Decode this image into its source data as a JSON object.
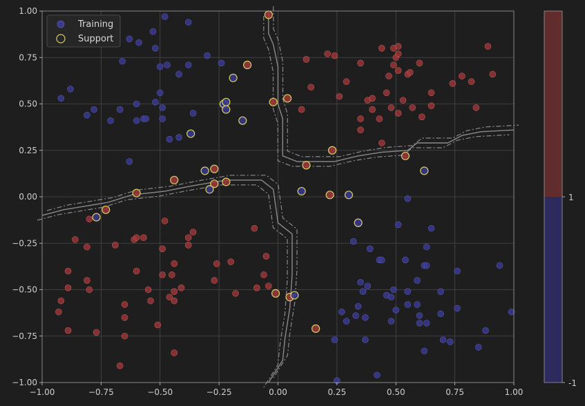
{
  "chart_data": {
    "type": "scatter",
    "title": "",
    "xlabel": "",
    "ylabel": "",
    "xlim": [
      -1.0,
      1.0
    ],
    "ylim": [
      -1.0,
      1.0
    ],
    "grid": true,
    "legend_position": "top-left",
    "x_ticks": [
      -1.0,
      -0.75,
      -0.5,
      -0.25,
      0.0,
      0.25,
      0.5,
      0.75,
      1.0
    ],
    "x_tick_labels": [
      "−1.00",
      "−0.75",
      "−0.50",
      "−0.25",
      "0.00",
      "0.25",
      "0.50",
      "0.75",
      "1.00"
    ],
    "y_ticks": [
      -1.0,
      -0.75,
      -0.5,
      -0.25,
      0.0,
      0.25,
      0.5,
      0.75,
      1.0
    ],
    "y_tick_labels": [
      "−1.00",
      "−0.75",
      "−0.50",
      "−0.25",
      "0.00",
      "0.25",
      "0.50",
      "0.75",
      "1.00"
    ],
    "colors": {
      "background": "#1e1e1e",
      "class_pos": "#a0393a",
      "class_neg": "#3a3a8f",
      "support_edge": "#d8cf6a",
      "boundary": "#8a8a8a",
      "grid": "#4a4a4a",
      "colorbar_top": "#612c2c",
      "colorbar_bottom": "#2d2b5e"
    },
    "legend": [
      {
        "label": "Training",
        "marker": "filled-circle"
      },
      {
        "label": "Support",
        "marker": "open-circle"
      }
    ],
    "colorbar": {
      "ticks": [
        1,
        -1
      ],
      "tick_labels": [
        "1",
        "-1"
      ]
    },
    "series": [
      {
        "label": "1",
        "points": [
          [
            0.49,
            0.8
          ],
          [
            0.51,
            0.81
          ],
          [
            0.44,
            0.8
          ],
          [
            0.89,
            0.81
          ],
          [
            0.21,
            0.77
          ],
          [
            0.24,
            0.76
          ],
          [
            0.12,
            0.74
          ],
          [
            0.5,
            0.75
          ],
          [
            0.51,
            0.77
          ],
          [
            0.35,
            0.72
          ],
          [
            0.49,
            0.71
          ],
          [
            0.6,
            0.72
          ],
          [
            0.55,
            0.66
          ],
          [
            0.56,
            0.67
          ],
          [
            0.47,
            0.65
          ],
          [
            0.51,
            0.68
          ],
          [
            0.78,
            0.65
          ],
          [
            0.82,
            0.62
          ],
          [
            0.91,
            0.66
          ],
          [
            0.74,
            0.61
          ],
          [
            0.29,
            0.62
          ],
          [
            0.14,
            0.59
          ],
          [
            0.26,
            0.54
          ],
          [
            0.38,
            0.52
          ],
          [
            0.4,
            0.53
          ],
          [
            0.46,
            0.56
          ],
          [
            0.53,
            0.52
          ],
          [
            0.65,
            0.56
          ],
          [
            0.1,
            0.47
          ],
          [
            0.4,
            0.47
          ],
          [
            0.48,
            0.48
          ],
          [
            0.51,
            0.45
          ],
          [
            0.57,
            0.48
          ],
          [
            0.65,
            0.49
          ],
          [
            0.84,
            0.48
          ],
          [
            0.35,
            0.42
          ],
          [
            0.43,
            0.42
          ],
          [
            0.61,
            0.43
          ],
          [
            0.35,
            0.36
          ],
          [
            0.44,
            0.29
          ],
          [
            -0.8,
            -0.12
          ],
          [
            -0.86,
            -0.23
          ],
          [
            -0.81,
            -0.27
          ],
          [
            -0.69,
            -0.26
          ],
          [
            -0.61,
            -0.23
          ],
          [
            -0.6,
            -0.22
          ],
          [
            -0.57,
            -0.22
          ],
          [
            -0.48,
            -0.13
          ],
          [
            -0.36,
            -0.19
          ],
          [
            -0.38,
            -0.22
          ],
          [
            -0.38,
            -0.26
          ],
          [
            -0.49,
            -0.28
          ],
          [
            -0.1,
            -0.17
          ],
          [
            -0.6,
            -0.4
          ],
          [
            -0.89,
            -0.4
          ],
          [
            -0.44,
            -0.36
          ],
          [
            -0.26,
            -0.36
          ],
          [
            -0.2,
            -0.35
          ],
          [
            -0.05,
            -0.32
          ],
          [
            -0.81,
            -0.45
          ],
          [
            -0.89,
            -0.49
          ],
          [
            -0.49,
            -0.42
          ],
          [
            -0.45,
            -0.42
          ],
          [
            -0.27,
            -0.45
          ],
          [
            -0.41,
            -0.49
          ],
          [
            -0.09,
            -0.49
          ],
          [
            -0.04,
            -0.48
          ],
          [
            -0.8,
            -0.5
          ],
          [
            -0.55,
            -0.5
          ],
          [
            -0.44,
            -0.51
          ],
          [
            -0.18,
            -0.52
          ],
          [
            -0.06,
            -0.42
          ],
          [
            -0.92,
            -0.56
          ],
          [
            -0.54,
            -0.56
          ],
          [
            -0.46,
            -0.54
          ],
          [
            -0.44,
            -0.56
          ],
          [
            -0.93,
            -0.62
          ],
          [
            -0.65,
            -0.58
          ],
          [
            -0.65,
            -0.65
          ],
          [
            -0.51,
            -0.69
          ],
          [
            -0.89,
            -0.72
          ],
          [
            -0.77,
            -0.73
          ],
          [
            -0.65,
            -0.75
          ],
          [
            -0.44,
            -0.84
          ],
          [
            -0.67,
            -0.91
          ]
        ]
      },
      {
        "label": "-1",
        "points": [
          [
            -0.48,
            0.97
          ],
          [
            -0.38,
            0.94
          ],
          [
            -0.63,
            0.85
          ],
          [
            -0.59,
            0.83
          ],
          [
            -0.53,
            0.89
          ],
          [
            -0.52,
            0.8
          ],
          [
            -0.3,
            0.76
          ],
          [
            -0.66,
            0.73
          ],
          [
            -0.47,
            0.71
          ],
          [
            -0.38,
            0.71
          ],
          [
            -0.24,
            0.72
          ],
          [
            -0.5,
            0.7
          ],
          [
            -0.42,
            0.66
          ],
          [
            -0.88,
            0.58
          ],
          [
            -0.92,
            0.53
          ],
          [
            -0.5,
            0.56
          ],
          [
            -0.52,
            0.51
          ],
          [
            -0.6,
            0.5
          ],
          [
            -0.78,
            0.47
          ],
          [
            -0.67,
            0.47
          ],
          [
            -0.49,
            0.48
          ],
          [
            -0.36,
            0.45
          ],
          [
            -0.81,
            0.44
          ],
          [
            -0.71,
            0.41
          ],
          [
            -0.6,
            0.41
          ],
          [
            -0.57,
            0.42
          ],
          [
            -0.56,
            0.42
          ],
          [
            -0.49,
            0.42
          ],
          [
            -0.42,
            0.32
          ],
          [
            -0.46,
            0.31
          ],
          [
            -0.63,
            0.19
          ],
          [
            0.55,
            -0.01
          ],
          [
            0.51,
            -0.15
          ],
          [
            0.65,
            -0.17
          ],
          [
            0.32,
            -0.24
          ],
          [
            0.39,
            -0.28
          ],
          [
            0.63,
            -0.27
          ],
          [
            0.43,
            -0.34
          ],
          [
            0.44,
            -0.34
          ],
          [
            0.54,
            -0.34
          ],
          [
            0.62,
            -0.37
          ],
          [
            0.63,
            -0.37
          ],
          [
            0.94,
            -0.37
          ],
          [
            0.76,
            -0.4
          ],
          [
            0.59,
            -0.45
          ],
          [
            0.35,
            -0.46
          ],
          [
            0.38,
            -0.48
          ],
          [
            0.49,
            -0.5
          ],
          [
            0.36,
            -0.51
          ],
          [
            0.46,
            -0.53
          ],
          [
            0.48,
            -0.54
          ],
          [
            0.55,
            -0.51
          ],
          [
            0.69,
            -0.51
          ],
          [
            0.34,
            -0.59
          ],
          [
            0.55,
            -0.58
          ],
          [
            0.59,
            -0.58
          ],
          [
            0.5,
            -0.61
          ],
          [
            0.76,
            -0.6
          ],
          [
            0.99,
            -0.62
          ],
          [
            0.27,
            -0.62
          ],
          [
            0.33,
            -0.64
          ],
          [
            0.37,
            -0.65
          ],
          [
            0.29,
            -0.67
          ],
          [
            0.48,
            -0.67
          ],
          [
            0.6,
            -0.64
          ],
          [
            0.6,
            -0.68
          ],
          [
            0.63,
            -0.68
          ],
          [
            0.69,
            -0.63
          ],
          [
            0.88,
            -0.72
          ],
          [
            0.24,
            -0.77
          ],
          [
            0.37,
            -0.77
          ],
          [
            0.7,
            -0.77
          ],
          [
            0.73,
            -0.78
          ],
          [
            0.85,
            -0.81
          ],
          [
            0.62,
            -0.83
          ],
          [
            0.42,
            -0.96
          ],
          [
            0.25,
            -0.99
          ]
        ]
      },
      {
        "label": "Support",
        "points": [
          [
            -0.04,
            0.98,
            1
          ],
          [
            -0.13,
            0.71,
            1
          ],
          [
            0.04,
            0.53,
            1
          ],
          [
            -0.02,
            0.51,
            1
          ],
          [
            0.23,
            0.25,
            1
          ],
          [
            0.54,
            0.22,
            1
          ],
          [
            0.12,
            0.17,
            1
          ],
          [
            -0.27,
            0.15,
            1
          ],
          [
            -0.44,
            0.09,
            1
          ],
          [
            -0.22,
            0.08,
            1
          ],
          [
            -0.27,
            0.07,
            1
          ],
          [
            -0.6,
            0.02,
            1
          ],
          [
            0.22,
            0.01,
            1
          ],
          [
            -0.73,
            -0.07,
            1
          ],
          [
            -0.01,
            -0.52,
            1
          ],
          [
            0.05,
            -0.54,
            1
          ],
          [
            0.16,
            -0.71,
            1
          ],
          [
            -0.19,
            0.64,
            -1
          ],
          [
            -0.23,
            0.5,
            -1
          ],
          [
            -0.22,
            0.51,
            -1
          ],
          [
            -0.22,
            0.47,
            -1
          ],
          [
            -0.15,
            0.41,
            -1
          ],
          [
            -0.37,
            0.34,
            -1
          ],
          [
            -0.31,
            0.14,
            -1
          ],
          [
            -0.29,
            0.04,
            -1
          ],
          [
            0.1,
            0.03,
            -1
          ],
          [
            0.3,
            0.01,
            -1
          ],
          [
            0.62,
            0.14,
            -1
          ],
          [
            -0.77,
            -0.11,
            -1
          ],
          [
            0.34,
            -0.14,
            -1
          ],
          [
            0.07,
            -0.53,
            -1
          ]
        ]
      }
    ],
    "decision_boundary": [
      [
        -0.04,
        1.0
      ],
      [
        -0.04,
        0.88
      ],
      [
        -0.02,
        0.82
      ],
      [
        0.0,
        0.7
      ],
      [
        0.0,
        0.5
      ],
      [
        0.02,
        0.42
      ],
      [
        0.02,
        0.22
      ],
      [
        0.08,
        0.19
      ],
      [
        0.24,
        0.19
      ],
      [
        0.34,
        0.22
      ],
      [
        0.44,
        0.24
      ],
      [
        0.55,
        0.25
      ],
      [
        0.59,
        0.29
      ],
      [
        0.72,
        0.29
      ],
      [
        0.78,
        0.33
      ],
      [
        0.86,
        0.35
      ],
      [
        1.0,
        0.36
      ]
    ],
    "decision_boundary_2": [
      [
        -1.0,
        -0.1
      ],
      [
        -0.91,
        -0.07
      ],
      [
        -0.72,
        -0.03
      ],
      [
        -0.62,
        0.01
      ],
      [
        -0.48,
        0.03
      ],
      [
        -0.36,
        0.06
      ],
      [
        -0.22,
        0.09
      ],
      [
        -0.07,
        0.09
      ],
      [
        -0.02,
        0.04
      ],
      [
        0.0,
        -0.14
      ],
      [
        0.06,
        -0.2
      ],
      [
        0.06,
        -0.42
      ],
      [
        0.05,
        -0.6
      ],
      [
        0.03,
        -0.76
      ],
      [
        0.02,
        -0.88
      ],
      [
        -0.04,
        -1.0
      ]
    ]
  }
}
